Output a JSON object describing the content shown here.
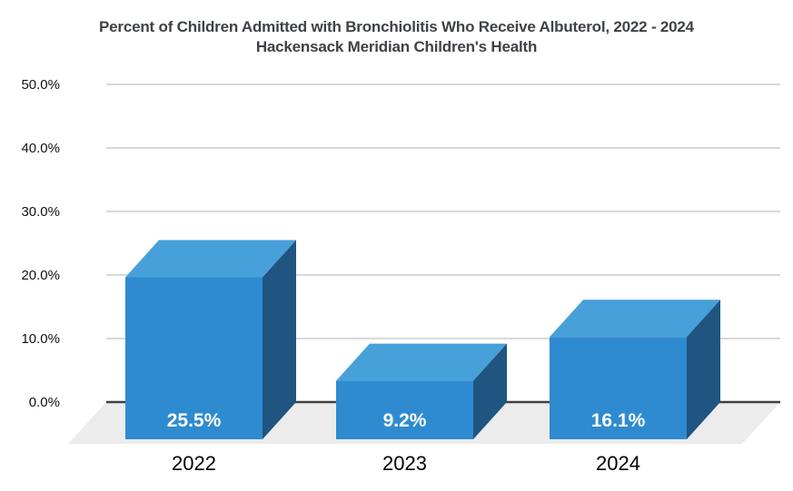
{
  "chart_data": {
    "type": "bar",
    "style": "3d-column",
    "title": "Percent of Children Admitted with Bronchiolitis Who Receive Albuterol, 2022 - 2024",
    "subtitle": "Hackensack Meridian Children's Health",
    "categories": [
      "2022",
      "2023",
      "2024"
    ],
    "values": [
      25.5,
      9.2,
      16.1
    ],
    "value_labels": [
      "25.5%",
      "9.2%",
      "16.1%"
    ],
    "xlabel": "",
    "ylabel": "",
    "ylim": [
      0,
      50
    ],
    "ytick_step": 10,
    "ytick_labels": [
      "0.0%",
      "10.0%",
      "20.0%",
      "30.0%",
      "40.0%",
      "50.0%"
    ],
    "grid": true,
    "legend": false,
    "colors": {
      "bar_front": "#2E8BD0",
      "bar_top": "#47A0D9",
      "bar_side": "#1F5580",
      "floor": "#ECECEC",
      "gridline": "#D8D8D8",
      "axis_line": "#3F3F3F",
      "title_text": "#3E4247",
      "tick_text": "#111111",
      "x_label_text": "#000000",
      "value_label_text": "#FFFFFF"
    }
  }
}
